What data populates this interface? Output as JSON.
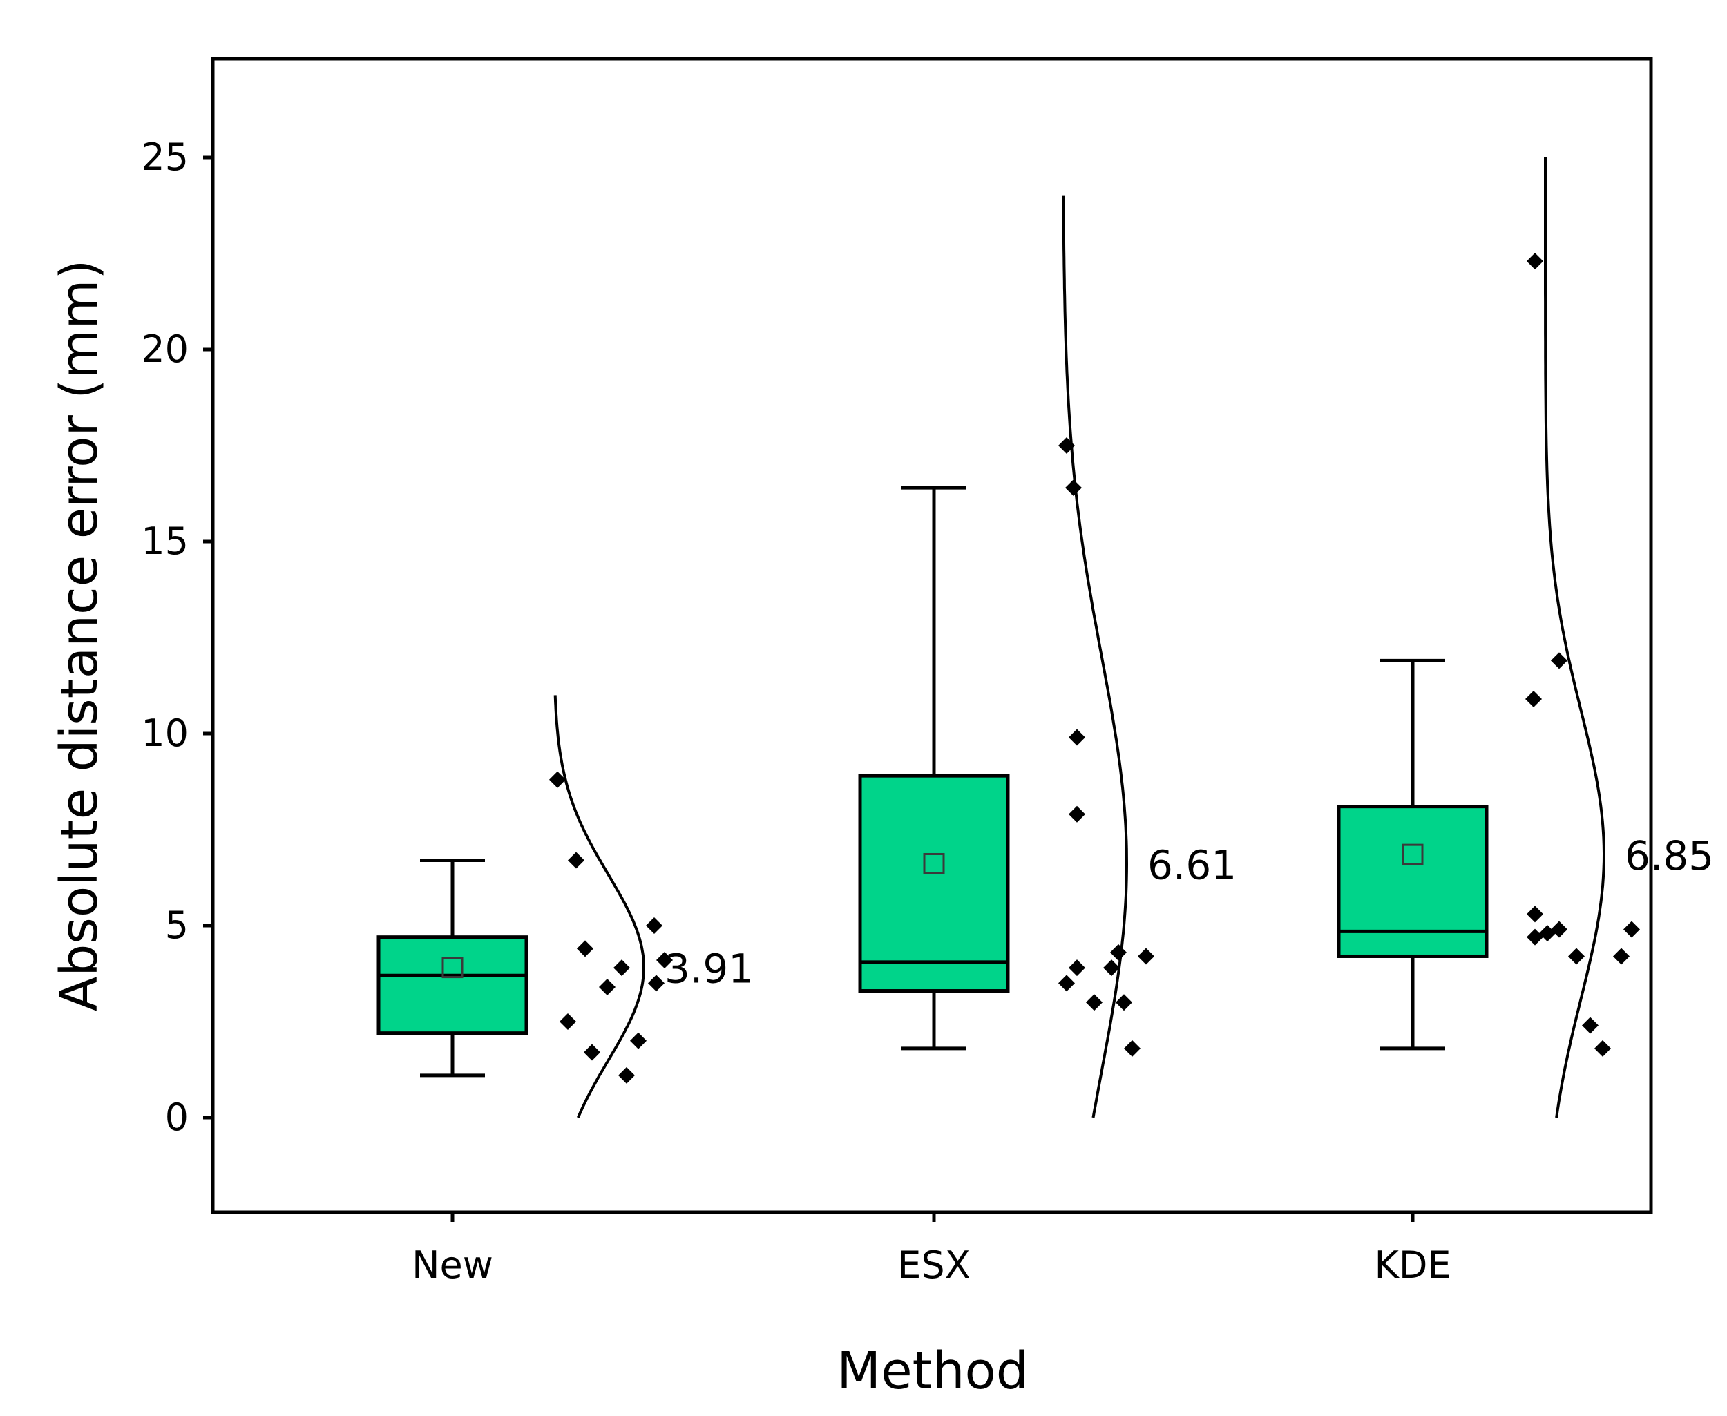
{
  "chart_data": {
    "type": "box",
    "title": "",
    "xlabel": "Method",
    "ylabel": "Absolute distance error (mm)",
    "ylim": [
      -2.5,
      27.5
    ],
    "yticks": [
      0,
      5,
      10,
      15,
      20,
      25
    ],
    "yticklabels": [
      "0",
      "5",
      "10",
      "15",
      "20",
      "25"
    ],
    "grid": false,
    "box_color": "#00D48A",
    "categories": [
      "New",
      "ESX",
      "KDE"
    ],
    "series": [
      {
        "name": "New",
        "whisker_low": 1.1,
        "q1": 2.2,
        "median": 3.7,
        "q3": 4.7,
        "whisker_high": 6.7,
        "mean": 3.91,
        "mean_label": "3.91",
        "points": [
          8.8,
          6.7,
          4.4,
          3.4,
          3.9,
          2.5,
          1.7,
          1.1,
          2.0,
          3.5,
          5.0,
          4.1
        ],
        "curve_ymax": 11.0
      },
      {
        "name": "ESX",
        "whisker_low": 1.8,
        "q1": 3.3,
        "median": 4.05,
        "q3": 8.9,
        "whisker_high": 16.4,
        "mean": 6.61,
        "mean_label": "6.61",
        "points": [
          17.5,
          16.4,
          9.9,
          7.9,
          3.5,
          3.9,
          3.0,
          4.3,
          3.9,
          3.0,
          1.8,
          4.2
        ],
        "curve_ymax": 24.0
      },
      {
        "name": "KDE",
        "whisker_low": 1.8,
        "q1": 4.2,
        "median": 4.85,
        "q3": 8.1,
        "whisker_high": 11.9,
        "mean": 6.85,
        "mean_label": "6.85",
        "points": [
          22.3,
          10.9,
          11.9,
          5.3,
          4.7,
          4.8,
          4.9,
          4.2,
          2.4,
          1.8,
          4.2,
          4.9
        ],
        "curve_ymax": 25.0
      }
    ]
  }
}
